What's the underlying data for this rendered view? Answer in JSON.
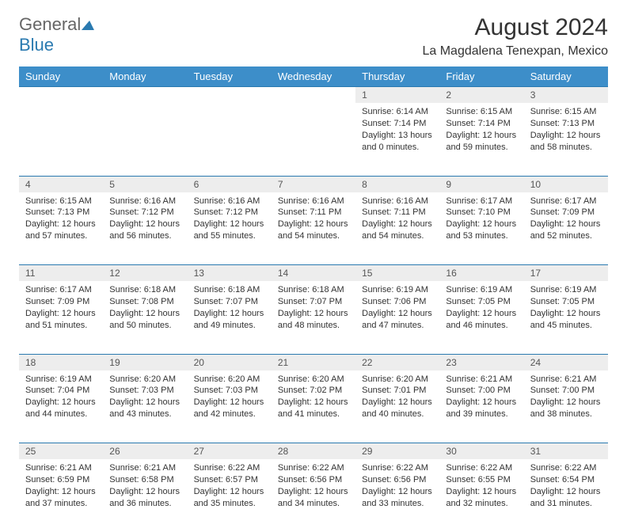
{
  "logo": {
    "part1": "General",
    "part2": "Blue"
  },
  "title": "August 2024",
  "location": "La Magdalena Tenexpan, Mexico",
  "day_headers": [
    "Sunday",
    "Monday",
    "Tuesday",
    "Wednesday",
    "Thursday",
    "Friday",
    "Saturday"
  ],
  "colors": {
    "header_bg": "#3d8ec9",
    "header_text": "#ffffff",
    "daynum_bg": "#ededed",
    "row_border": "#2a7ab0",
    "body_text": "#333333"
  },
  "weeks": [
    [
      {
        "empty": true
      },
      {
        "empty": true
      },
      {
        "empty": true
      },
      {
        "empty": true
      },
      {
        "day": "1",
        "sunrise": "Sunrise: 6:14 AM",
        "sunset": "Sunset: 7:14 PM",
        "daylight": "Daylight: 13 hours and 0 minutes."
      },
      {
        "day": "2",
        "sunrise": "Sunrise: 6:15 AM",
        "sunset": "Sunset: 7:14 PM",
        "daylight": "Daylight: 12 hours and 59 minutes."
      },
      {
        "day": "3",
        "sunrise": "Sunrise: 6:15 AM",
        "sunset": "Sunset: 7:13 PM",
        "daylight": "Daylight: 12 hours and 58 minutes."
      }
    ],
    [
      {
        "day": "4",
        "sunrise": "Sunrise: 6:15 AM",
        "sunset": "Sunset: 7:13 PM",
        "daylight": "Daylight: 12 hours and 57 minutes."
      },
      {
        "day": "5",
        "sunrise": "Sunrise: 6:16 AM",
        "sunset": "Sunset: 7:12 PM",
        "daylight": "Daylight: 12 hours and 56 minutes."
      },
      {
        "day": "6",
        "sunrise": "Sunrise: 6:16 AM",
        "sunset": "Sunset: 7:12 PM",
        "daylight": "Daylight: 12 hours and 55 minutes."
      },
      {
        "day": "7",
        "sunrise": "Sunrise: 6:16 AM",
        "sunset": "Sunset: 7:11 PM",
        "daylight": "Daylight: 12 hours and 54 minutes."
      },
      {
        "day": "8",
        "sunrise": "Sunrise: 6:16 AM",
        "sunset": "Sunset: 7:11 PM",
        "daylight": "Daylight: 12 hours and 54 minutes."
      },
      {
        "day": "9",
        "sunrise": "Sunrise: 6:17 AM",
        "sunset": "Sunset: 7:10 PM",
        "daylight": "Daylight: 12 hours and 53 minutes."
      },
      {
        "day": "10",
        "sunrise": "Sunrise: 6:17 AM",
        "sunset": "Sunset: 7:09 PM",
        "daylight": "Daylight: 12 hours and 52 minutes."
      }
    ],
    [
      {
        "day": "11",
        "sunrise": "Sunrise: 6:17 AM",
        "sunset": "Sunset: 7:09 PM",
        "daylight": "Daylight: 12 hours and 51 minutes."
      },
      {
        "day": "12",
        "sunrise": "Sunrise: 6:18 AM",
        "sunset": "Sunset: 7:08 PM",
        "daylight": "Daylight: 12 hours and 50 minutes."
      },
      {
        "day": "13",
        "sunrise": "Sunrise: 6:18 AM",
        "sunset": "Sunset: 7:07 PM",
        "daylight": "Daylight: 12 hours and 49 minutes."
      },
      {
        "day": "14",
        "sunrise": "Sunrise: 6:18 AM",
        "sunset": "Sunset: 7:07 PM",
        "daylight": "Daylight: 12 hours and 48 minutes."
      },
      {
        "day": "15",
        "sunrise": "Sunrise: 6:19 AM",
        "sunset": "Sunset: 7:06 PM",
        "daylight": "Daylight: 12 hours and 47 minutes."
      },
      {
        "day": "16",
        "sunrise": "Sunrise: 6:19 AM",
        "sunset": "Sunset: 7:05 PM",
        "daylight": "Daylight: 12 hours and 46 minutes."
      },
      {
        "day": "17",
        "sunrise": "Sunrise: 6:19 AM",
        "sunset": "Sunset: 7:05 PM",
        "daylight": "Daylight: 12 hours and 45 minutes."
      }
    ],
    [
      {
        "day": "18",
        "sunrise": "Sunrise: 6:19 AM",
        "sunset": "Sunset: 7:04 PM",
        "daylight": "Daylight: 12 hours and 44 minutes."
      },
      {
        "day": "19",
        "sunrise": "Sunrise: 6:20 AM",
        "sunset": "Sunset: 7:03 PM",
        "daylight": "Daylight: 12 hours and 43 minutes."
      },
      {
        "day": "20",
        "sunrise": "Sunrise: 6:20 AM",
        "sunset": "Sunset: 7:03 PM",
        "daylight": "Daylight: 12 hours and 42 minutes."
      },
      {
        "day": "21",
        "sunrise": "Sunrise: 6:20 AM",
        "sunset": "Sunset: 7:02 PM",
        "daylight": "Daylight: 12 hours and 41 minutes."
      },
      {
        "day": "22",
        "sunrise": "Sunrise: 6:20 AM",
        "sunset": "Sunset: 7:01 PM",
        "daylight": "Daylight: 12 hours and 40 minutes."
      },
      {
        "day": "23",
        "sunrise": "Sunrise: 6:21 AM",
        "sunset": "Sunset: 7:00 PM",
        "daylight": "Daylight: 12 hours and 39 minutes."
      },
      {
        "day": "24",
        "sunrise": "Sunrise: 6:21 AM",
        "sunset": "Sunset: 7:00 PM",
        "daylight": "Daylight: 12 hours and 38 minutes."
      }
    ],
    [
      {
        "day": "25",
        "sunrise": "Sunrise: 6:21 AM",
        "sunset": "Sunset: 6:59 PM",
        "daylight": "Daylight: 12 hours and 37 minutes."
      },
      {
        "day": "26",
        "sunrise": "Sunrise: 6:21 AM",
        "sunset": "Sunset: 6:58 PM",
        "daylight": "Daylight: 12 hours and 36 minutes."
      },
      {
        "day": "27",
        "sunrise": "Sunrise: 6:22 AM",
        "sunset": "Sunset: 6:57 PM",
        "daylight": "Daylight: 12 hours and 35 minutes."
      },
      {
        "day": "28",
        "sunrise": "Sunrise: 6:22 AM",
        "sunset": "Sunset: 6:56 PM",
        "daylight": "Daylight: 12 hours and 34 minutes."
      },
      {
        "day": "29",
        "sunrise": "Sunrise: 6:22 AM",
        "sunset": "Sunset: 6:56 PM",
        "daylight": "Daylight: 12 hours and 33 minutes."
      },
      {
        "day": "30",
        "sunrise": "Sunrise: 6:22 AM",
        "sunset": "Sunset: 6:55 PM",
        "daylight": "Daylight: 12 hours and 32 minutes."
      },
      {
        "day": "31",
        "sunrise": "Sunrise: 6:22 AM",
        "sunset": "Sunset: 6:54 PM",
        "daylight": "Daylight: 12 hours and 31 minutes."
      }
    ]
  ]
}
